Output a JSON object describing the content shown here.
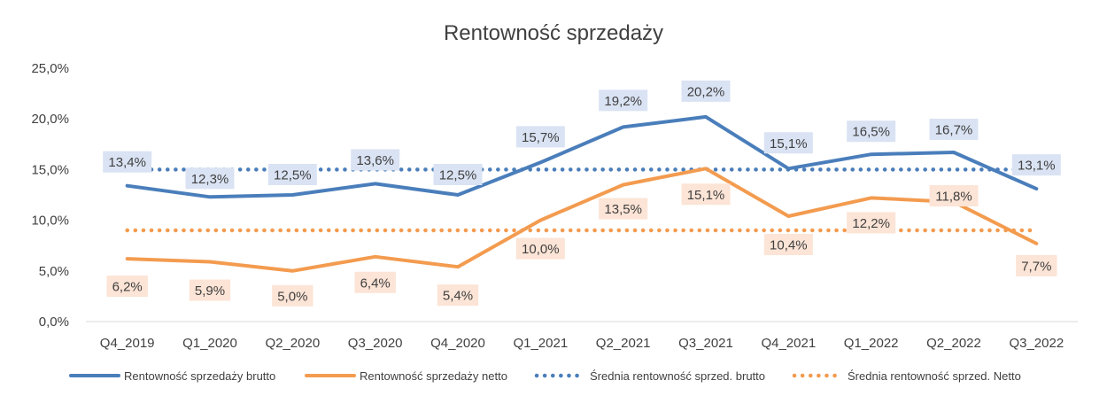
{
  "chart_data": {
    "type": "line",
    "title": "Rentowność sprzedaży",
    "xlabel": "",
    "ylabel": "",
    "categories": [
      "Q4_2019",
      "Q1_2020",
      "Q2_2020",
      "Q3_2020",
      "Q4_2020",
      "Q1_2021",
      "Q2_2021",
      "Q3_2021",
      "Q4_2021",
      "Q1_2022",
      "Q2_2022",
      "Q3_2022"
    ],
    "ylim": [
      0,
      25
    ],
    "yticks": [
      "0,0%",
      "5,0%",
      "10,0%",
      "15,0%",
      "20,0%",
      "25,0%"
    ],
    "grid": true,
    "legend_position": "bottom",
    "series": [
      {
        "name": "Rentowność sprzedaży brutto",
        "style": "solid",
        "color": "#4a7ebb",
        "label_bg": "#dae3f3",
        "values": [
          13.4,
          12.3,
          12.5,
          13.6,
          12.5,
          15.7,
          19.2,
          20.2,
          15.1,
          16.5,
          16.7,
          13.1
        ],
        "labels": [
          "13,4%",
          "12,3%",
          "12,5%",
          "13,6%",
          "12,5%",
          "15,7%",
          "19,2%",
          "20,2%",
          "15,1%",
          "16,5%",
          "16,7%",
          "13,1%"
        ]
      },
      {
        "name": "Rentowność sprzedaży netto",
        "style": "solid",
        "color": "#f39b4f",
        "label_bg": "#fce4d6",
        "values": [
          6.2,
          5.9,
          5.0,
          6.4,
          5.4,
          10.0,
          13.5,
          15.1,
          10.4,
          12.2,
          11.8,
          7.7
        ],
        "labels": [
          "6,2%",
          "5,9%",
          "5,0%",
          "6,4%",
          "5,4%",
          "10,0%",
          "13,5%",
          "15,1%",
          "10,4%",
          "12,2%",
          "11,8%",
          "7,7%"
        ]
      },
      {
        "name": "Średnia rentowność sprzed. brutto",
        "style": "dotted",
        "color": "#4a7ebb",
        "values": [
          15.0,
          15.0,
          15.0,
          15.0,
          15.0,
          15.0,
          15.0,
          15.0,
          15.0,
          15.0,
          15.0,
          15.0
        ]
      },
      {
        "name": "Średnia rentowność sprzed. Netto",
        "style": "dotted",
        "color": "#f39b4f",
        "values": [
          9.0,
          9.0,
          9.0,
          9.0,
          9.0,
          9.0,
          9.0,
          9.0,
          9.0,
          9.0,
          9.0,
          9.0
        ]
      }
    ]
  }
}
